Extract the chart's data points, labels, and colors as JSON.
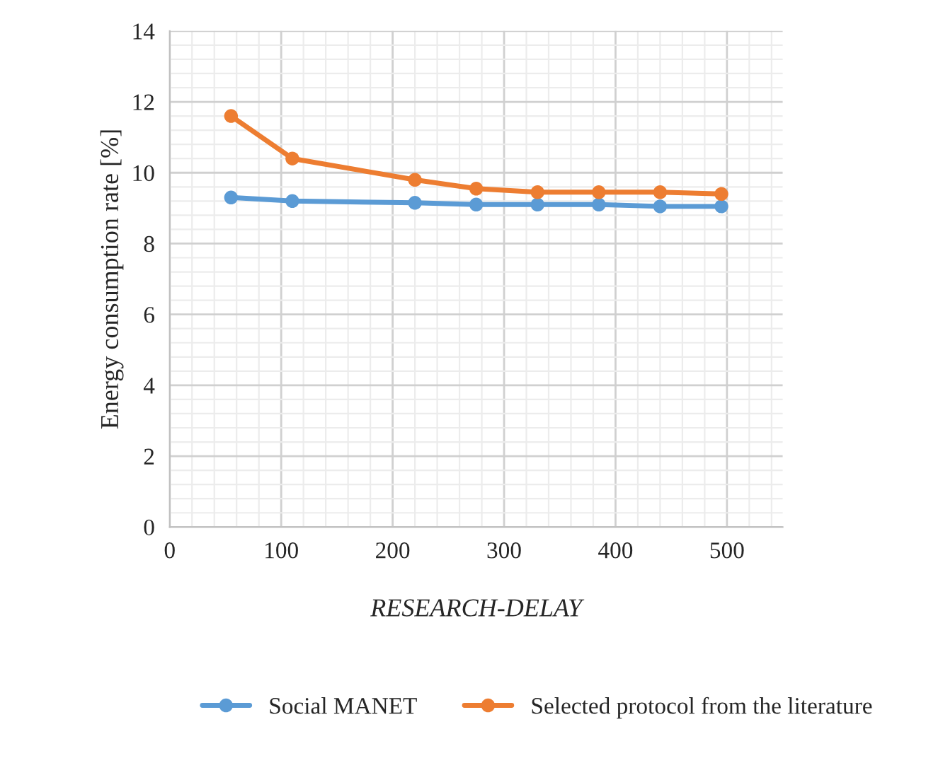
{
  "chart_data": {
    "type": "line",
    "xlabel": "RESEARCH-DELAY",
    "ylabel": "Energy consumption rate [%]",
    "x": [
      55,
      110,
      220,
      275,
      330,
      385,
      440,
      495
    ],
    "series": [
      {
        "name": "Social MANET",
        "color": "#5b9bd5",
        "values": [
          9.3,
          9.2,
          9.15,
          9.1,
          9.1,
          9.1,
          9.05,
          9.05
        ]
      },
      {
        "name": "Selected protocol from the literature",
        "color": "#ed7d31",
        "values": [
          11.6,
          10.4,
          9.8,
          9.55,
          9.45,
          9.45,
          9.45,
          9.4
        ]
      }
    ],
    "xlim": [
      0,
      550
    ],
    "xticks": [
      0,
      100,
      200,
      300,
      400,
      500
    ],
    "ylim": [
      0,
      14
    ],
    "yticks": [
      0,
      2,
      4,
      6,
      8,
      10,
      12,
      14
    ],
    "grid": true,
    "legend": "bottom",
    "marker": "circle",
    "line_style": "solid"
  }
}
